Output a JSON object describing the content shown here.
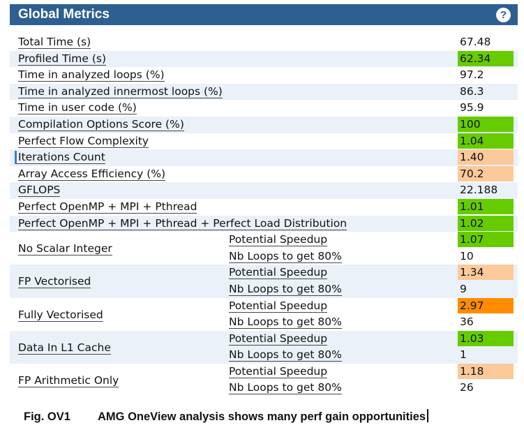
{
  "header": {
    "title": "Global Metrics",
    "help_glyph": "?"
  },
  "colors": {
    "green": "#66cc00",
    "peach": "#fcc99a",
    "orange": "#ff8c00",
    "header_bg": "#2d5f91",
    "row_shade": "#eaf1f8"
  },
  "metrics": [
    {
      "label": "Total Time (s)",
      "value": "67.48",
      "color": ""
    },
    {
      "label": "Profiled Time (s)",
      "value": "62.34",
      "color": "green"
    },
    {
      "label": "Time in analyzed loops (%)",
      "value": "97.2",
      "color": ""
    },
    {
      "label": "Time in analyzed innermost loops (%)",
      "value": "86.3",
      "color": ""
    },
    {
      "label": "Time in user code (%)",
      "value": "95.9",
      "color": ""
    },
    {
      "label": "Compilation Options Score (%)",
      "value": "100",
      "color": "green"
    },
    {
      "label": "Perfect Flow Complexity",
      "value": "1.04",
      "color": "green"
    },
    {
      "label": "Iterations Count",
      "value": "1.40",
      "color": "peach"
    },
    {
      "label": "Array Access Efficiency (%)",
      "value": "70.2",
      "color": "peach"
    },
    {
      "label": "GFLOPS",
      "value": "22.188",
      "color": ""
    },
    {
      "label": "Perfect OpenMP + MPI + Pthread",
      "value": "1.01",
      "color": "green"
    },
    {
      "label": "Perfect OpenMP + MPI + Pthread + Perfect Load Distribution",
      "value": "1.02",
      "color": "green"
    }
  ],
  "groups": [
    {
      "label": "No Scalar Integer",
      "speedup_label": "Potential Speedup",
      "speedup": "1.07",
      "speedup_color": "green",
      "loops_label": "Nb Loops to get 80%",
      "loops": "10"
    },
    {
      "label": "FP Vectorised",
      "speedup_label": "Potential Speedup",
      "speedup": "1.34",
      "speedup_color": "peach",
      "loops_label": "Nb Loops to get 80%",
      "loops": "9"
    },
    {
      "label": "Fully Vectorised",
      "speedup_label": "Potential Speedup",
      "speedup": "2.97",
      "speedup_color": "orange",
      "loops_label": "Nb Loops to get 80%",
      "loops": "36"
    },
    {
      "label": "Data In L1 Cache",
      "speedup_label": "Potential Speedup",
      "speedup": "1.03",
      "speedup_color": "green",
      "loops_label": "Nb Loops to get 80%",
      "loops": "1"
    },
    {
      "label": "FP Arithmetic Only",
      "speedup_label": "Potential Speedup",
      "speedup": "1.18",
      "speedup_color": "peach",
      "loops_label": "Nb Loops to get 80%",
      "loops": "26"
    }
  ],
  "caption": {
    "fig": "Fig. OV1",
    "text": "AMG OneView analysis shows many perf gain opportunities"
  }
}
